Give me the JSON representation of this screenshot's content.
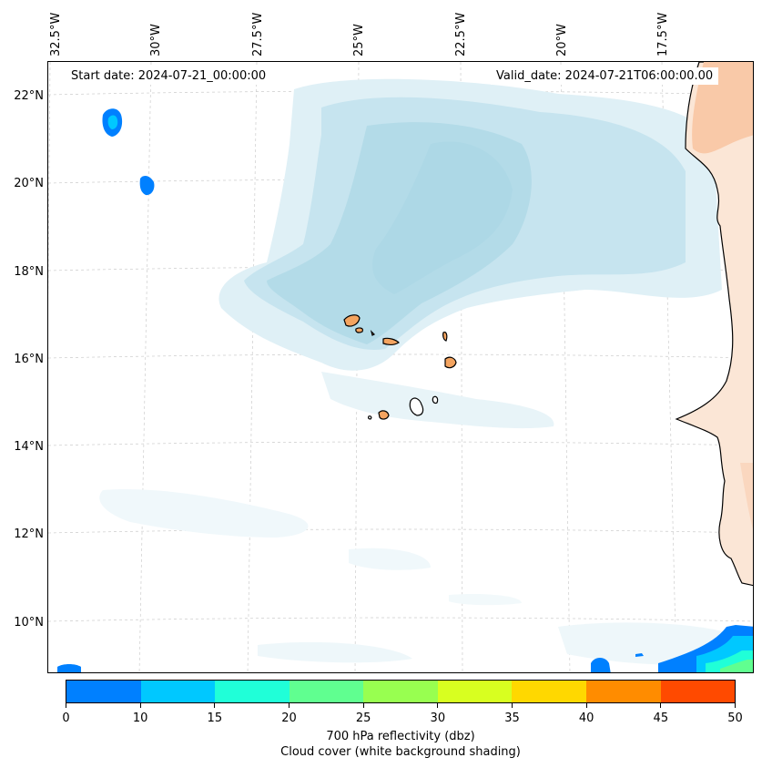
{
  "header": {
    "start_date": "Start date: 2024-07-21_00:00:00",
    "valid_date": "Valid_date: 2024-07-21T06:00:00.00"
  },
  "axes": {
    "longitude_labels": [
      "32.5°W",
      "30°W",
      "27.5°W",
      "25°W",
      "22.5°W",
      "20°W",
      "17.5°W"
    ],
    "latitude_labels": [
      "22°N",
      "20°N",
      "18°N",
      "16°N",
      "14°N",
      "12°N",
      "10°N"
    ]
  },
  "colorbar": {
    "ticks": [
      "0",
      "10",
      "15",
      "20",
      "25",
      "30",
      "35",
      "40",
      "45",
      "50"
    ],
    "colors": [
      "#0080ff",
      "#00c8ff",
      "#20ffd8",
      "#60ff90",
      "#98ff50",
      "#d8ff20",
      "#ffd800",
      "#ff8c00",
      "#ff4a00"
    ],
    "title_line1": "700 hPa reflectivity (dbz)",
    "title_line2": "Cloud cover (white background shading)"
  },
  "colors": {
    "cloud": "#add8e6",
    "land": "#f4a460",
    "reflectivity_low": "#0080ff",
    "reflectivity_mid": "#00c8ff",
    "reflectivity_high": "#20ffd8"
  }
}
